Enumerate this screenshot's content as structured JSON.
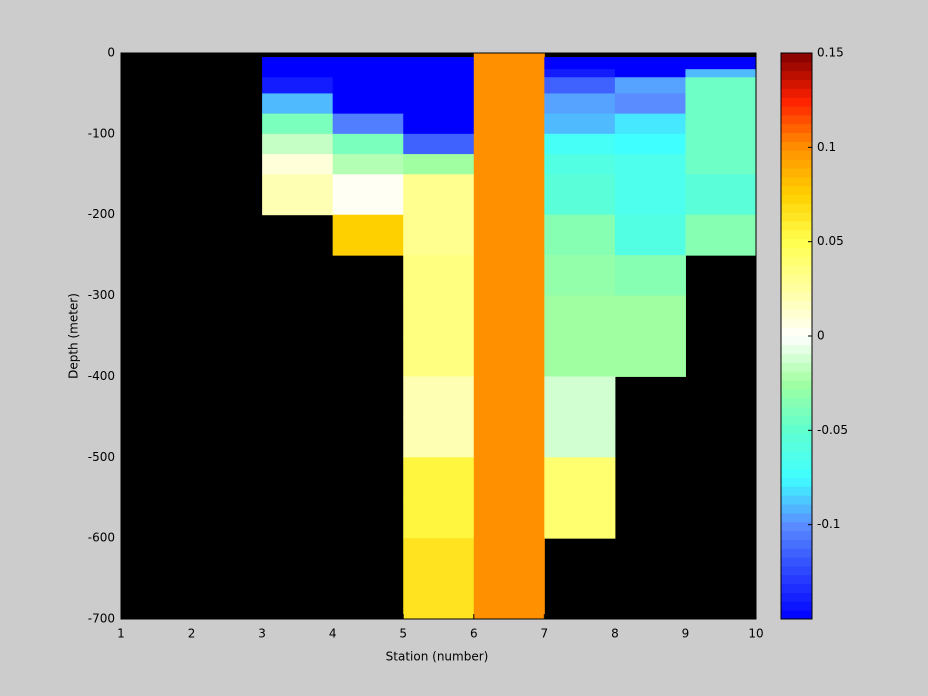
{
  "chart_data": {
    "type": "heatmap",
    "xlabel": "Station (number)",
    "ylabel": "Depth (meter)",
    "x_edges": [
      1,
      2,
      3,
      4,
      5,
      6,
      7,
      8,
      9,
      10
    ],
    "y_edges": [
      0,
      -5,
      -20,
      -30,
      -50,
      -75,
      -100,
      -125,
      -150,
      -200,
      -250,
      -300,
      -350,
      -400,
      -450,
      -500,
      -550,
      -600,
      -650,
      -700
    ],
    "values": [
      [
        null,
        null,
        null,
        null,
        null,
        0.1,
        null,
        null,
        null
      ],
      [
        null,
        null,
        -0.15,
        -0.15,
        -0.15,
        0.1,
        -0.15,
        -0.15,
        -0.15
      ],
      [
        null,
        null,
        -0.15,
        -0.15,
        -0.15,
        0.1,
        -0.14,
        -0.15,
        -0.09
      ],
      [
        null,
        null,
        -0.14,
        -0.15,
        -0.15,
        0.1,
        -0.115,
        -0.095,
        -0.045
      ],
      [
        null,
        null,
        -0.09,
        -0.15,
        -0.15,
        0.1,
        -0.095,
        -0.1,
        -0.045
      ],
      [
        null,
        null,
        -0.04,
        -0.105,
        -0.15,
        0.1,
        -0.09,
        -0.08,
        -0.045
      ],
      [
        null,
        null,
        -0.015,
        -0.04,
        -0.115,
        0.1,
        -0.07,
        -0.075,
        -0.045
      ],
      [
        null,
        null,
        0.01,
        -0.02,
        -0.025,
        0.1,
        -0.06,
        -0.065,
        -0.045
      ],
      [
        null,
        null,
        0.02,
        0.003,
        0.03,
        0.1,
        -0.055,
        -0.065,
        -0.055
      ],
      [
        null,
        null,
        null,
        0.075,
        0.03,
        0.1,
        -0.035,
        -0.06,
        -0.035
      ],
      [
        null,
        null,
        null,
        null,
        0.035,
        0.1,
        -0.03,
        -0.035,
        null
      ],
      [
        null,
        null,
        null,
        null,
        0.035,
        0.1,
        -0.025,
        -0.025,
        null
      ],
      [
        null,
        null,
        null,
        null,
        0.035,
        0.1,
        -0.025,
        -0.025,
        null
      ],
      [
        null,
        null,
        null,
        null,
        0.02,
        0.1,
        -0.012,
        null,
        null
      ],
      [
        null,
        null,
        null,
        null,
        0.02,
        0.1,
        -0.012,
        null,
        null
      ],
      [
        null,
        null,
        null,
        null,
        0.055,
        0.1,
        0.04,
        null,
        null
      ],
      [
        null,
        null,
        null,
        null,
        0.055,
        0.1,
        0.04,
        null,
        null
      ],
      [
        null,
        null,
        null,
        null,
        0.065,
        0.1,
        null,
        null,
        null
      ],
      [
        null,
        null,
        null,
        null,
        0.065,
        0.1,
        null,
        null,
        null
      ]
    ],
    "nan_color": "#000000",
    "xlim": [
      1,
      10
    ],
    "xticks": [
      1,
      2,
      3,
      4,
      5,
      6,
      7,
      8,
      9,
      10
    ],
    "ylim": [
      -700,
      0
    ],
    "yticks": [
      0,
      -100,
      -200,
      -300,
      -400,
      -500,
      -600,
      -700
    ],
    "clim": [
      -0.15,
      0.15
    ],
    "cticks": [
      0.15,
      0.1,
      0.05,
      0,
      -0.05,
      -0.1
    ],
    "colormap": [
      [
        -0.15,
        "#0000ff"
      ],
      [
        -0.1,
        "#5a8cff"
      ],
      [
        -0.075,
        "#40ffff"
      ],
      [
        -0.05,
        "#60ffd0"
      ],
      [
        -0.025,
        "#a0ffa0"
      ],
      [
        0,
        "#ffffff"
      ],
      [
        0.025,
        "#ffffa0"
      ],
      [
        0.05,
        "#ffff50"
      ],
      [
        0.075,
        "#ffd000"
      ],
      [
        0.1,
        "#ff9000"
      ],
      [
        0.125,
        "#ff2000"
      ],
      [
        0.15,
        "#800000"
      ]
    ]
  }
}
